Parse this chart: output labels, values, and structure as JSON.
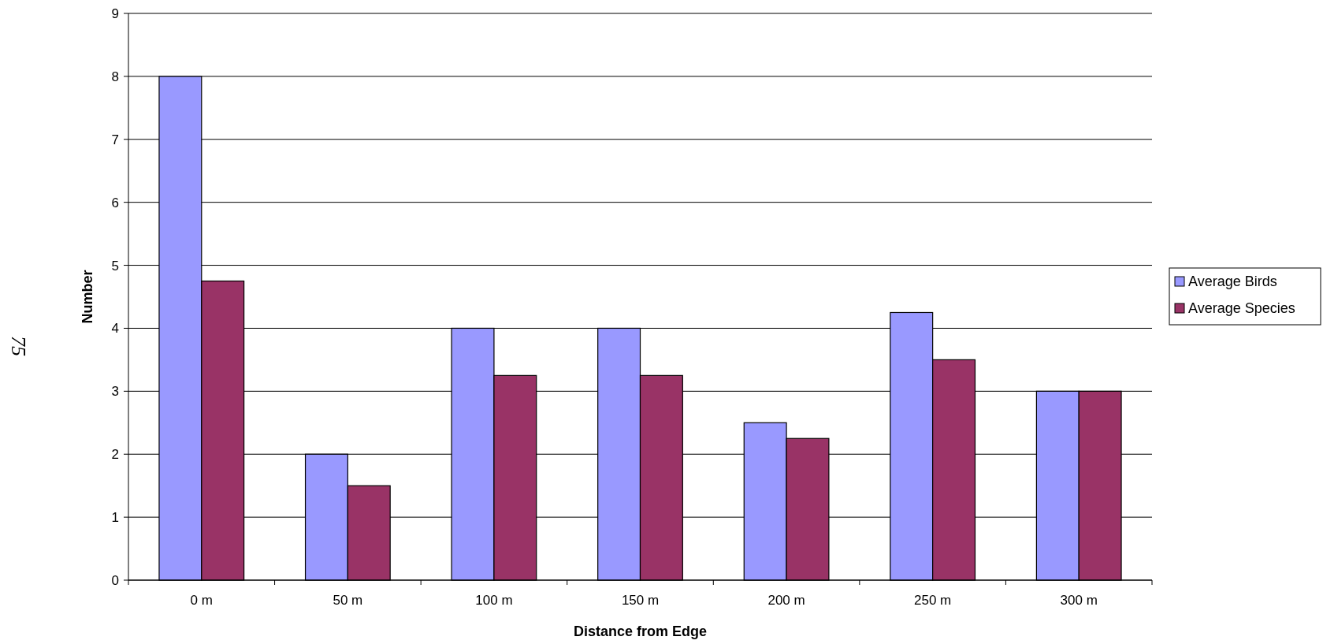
{
  "chart_data": {
    "type": "bar",
    "xlabel": "Distance from Edge",
    "ylabel": "Number",
    "categories": [
      "0 m",
      "50 m",
      "100 m",
      "150 m",
      "200 m",
      "250 m",
      "300 m"
    ],
    "series": [
      {
        "name": "Average Birds",
        "color": "#9999ff",
        "values": [
          8,
          2,
          4,
          4,
          2.5,
          4.25,
          3
        ]
      },
      {
        "name": "Average Species",
        "color": "#993366",
        "values": [
          4.75,
          1.5,
          3.25,
          3.25,
          2.25,
          3.5,
          3
        ]
      }
    ],
    "ylim": [
      0,
      9
    ],
    "yticks": [
      0,
      1,
      2,
      3,
      4,
      5,
      6,
      7,
      8,
      9
    ],
    "grid": "y",
    "legend": "right",
    "annotations": [
      "75"
    ]
  }
}
